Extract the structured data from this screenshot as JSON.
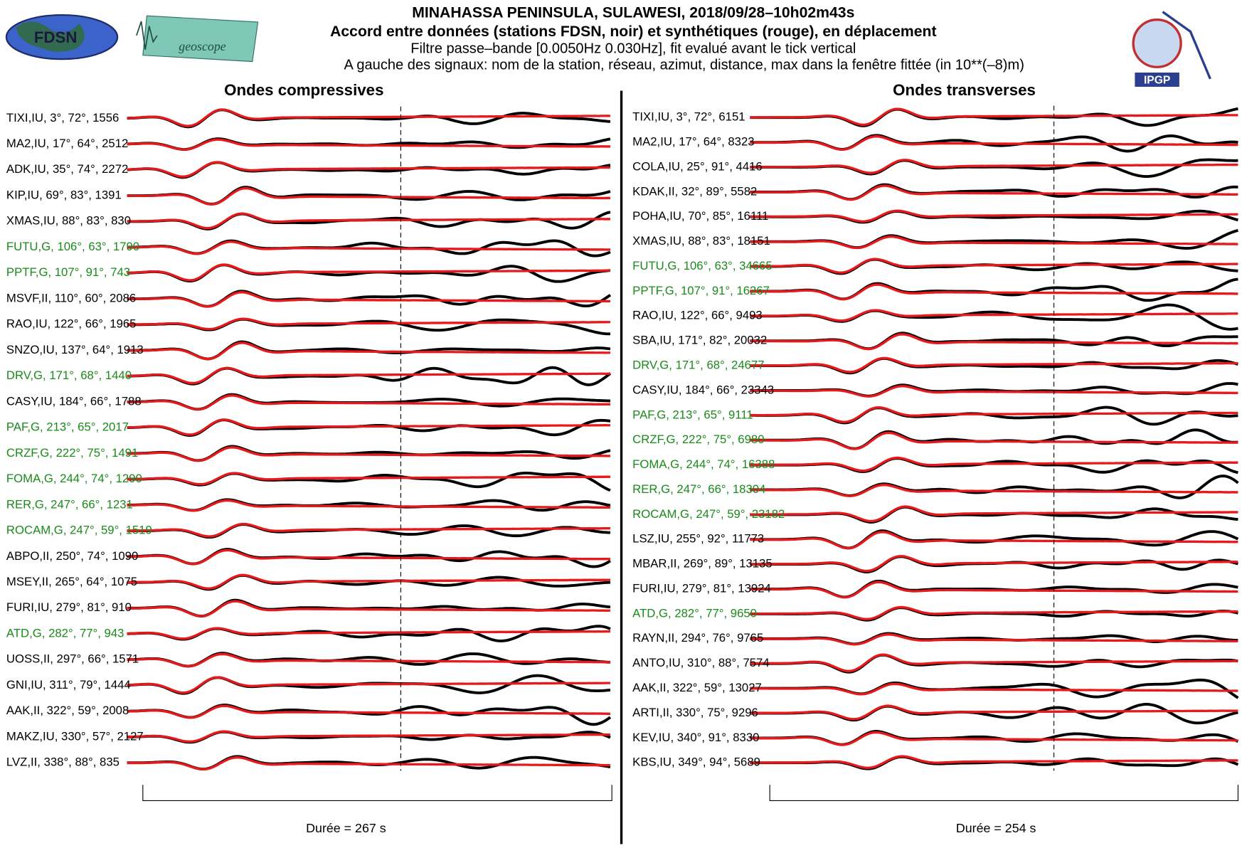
{
  "header": {
    "title": "MINAHASSA PENINSULA, SULAWESI, 2018/09/28–10h02m43s",
    "subtitle": "Accord entre données (stations FDSN, noir) et synthétiques (rouge), en déplacement",
    "filter": "Filtre passe–bande [0.0050Hz 0.030Hz], fit evalué avant le tick vertical",
    "legend": "A gauche des signaux: nom de la station, réseau, azimut, distance, max dans la fenêtre fittée (in 10**(–8)m)"
  },
  "logos": {
    "fdsn": "FDSN",
    "geoscope": "geoscope",
    "ipgp": "IPGP"
  },
  "panels": [
    {
      "title": "Ondes compressives",
      "duration": "Durée = 267 s",
      "rows": [
        {
          "label": "TIXI,IU, 3°, 72°, 1556",
          "color": "#000"
        },
        {
          "label": "MA2,IU, 17°, 64°, 2512",
          "color": "#000"
        },
        {
          "label": "ADK,IU, 35°, 74°, 2272",
          "color": "#000"
        },
        {
          "label": "KIP,IU, 69°, 83°, 1391",
          "color": "#000"
        },
        {
          "label": "XMAS,IU, 88°, 83°, 830",
          "color": "#000"
        },
        {
          "label": "FUTU,G, 106°, 63°, 1790",
          "color": "#1a8a1a"
        },
        {
          "label": "PPTF,G, 107°, 91°, 743",
          "color": "#1a8a1a"
        },
        {
          "label": "MSVF,II, 110°, 60°, 2086",
          "color": "#000"
        },
        {
          "label": "RAO,IU, 122°, 66°, 1965",
          "color": "#000"
        },
        {
          "label": "SNZO,IU, 137°, 64°, 1913",
          "color": "#000"
        },
        {
          "label": "DRV,G, 171°, 68°, 1440",
          "color": "#1a8a1a"
        },
        {
          "label": "CASY,IU, 184°, 66°, 1788",
          "color": "#000"
        },
        {
          "label": "PAF,G, 213°, 65°, 2017",
          "color": "#1a8a1a"
        },
        {
          "label": "CRZF,G, 222°, 75°, 1491",
          "color": "#1a8a1a"
        },
        {
          "label": "FOMA,G, 244°, 74°, 1290",
          "color": "#1a8a1a"
        },
        {
          "label": "RER,G, 247°, 66°, 1231",
          "color": "#1a8a1a"
        },
        {
          "label": "ROCAM,G, 247°, 59°, 1519",
          "color": "#1a8a1a"
        },
        {
          "label": "ABPO,II, 250°, 74°, 1090",
          "color": "#000"
        },
        {
          "label": "MSEY,II, 265°, 64°, 1075",
          "color": "#000"
        },
        {
          "label": "FURI,IU, 279°, 81°, 910",
          "color": "#000"
        },
        {
          "label": "ATD,G, 282°, 77°, 943",
          "color": "#1a8a1a"
        },
        {
          "label": "UOSS,II, 297°, 66°, 1571",
          "color": "#000"
        },
        {
          "label": "GNI,IU, 311°, 79°, 1444",
          "color": "#000"
        },
        {
          "label": "AAK,II, 322°, 59°, 2008",
          "color": "#000"
        },
        {
          "label": "MAKZ,IU, 330°, 57°, 2127",
          "color": "#000"
        },
        {
          "label": "LVZ,II, 338°, 88°, 835",
          "color": "#000"
        }
      ]
    },
    {
      "title": "Ondes transverses",
      "duration": "Durée = 254 s",
      "rows": [
        {
          "label": "TIXI,IU, 3°, 72°, 6151",
          "color": "#000"
        },
        {
          "label": "MA2,IU, 17°, 64°, 8323",
          "color": "#000"
        },
        {
          "label": "COLA,IU, 25°, 91°, 4416",
          "color": "#000"
        },
        {
          "label": "KDAK,II, 32°, 89°, 5582",
          "color": "#000"
        },
        {
          "label": "POHA,IU, 70°, 85°, 16111",
          "color": "#000"
        },
        {
          "label": "XMAS,IU, 88°, 83°, 18151",
          "color": "#000"
        },
        {
          "label": "FUTU,G, 106°, 63°, 34665",
          "color": "#1a8a1a"
        },
        {
          "label": "PPTF,G, 107°, 91°, 16267",
          "color": "#1a8a1a"
        },
        {
          "label": "RAO,IU, 122°, 66°, 9493",
          "color": "#000"
        },
        {
          "label": "SBA,IU, 171°, 82°, 20032",
          "color": "#000"
        },
        {
          "label": "DRV,G, 171°, 68°, 24677",
          "color": "#1a8a1a"
        },
        {
          "label": "CASY,IU, 184°, 66°, 23343",
          "color": "#000"
        },
        {
          "label": "PAF,G, 213°, 65°, 9111",
          "color": "#1a8a1a"
        },
        {
          "label": "CRZF,G, 222°, 75°, 6980",
          "color": "#1a8a1a"
        },
        {
          "label": "FOMA,G, 244°, 74°, 16388",
          "color": "#1a8a1a"
        },
        {
          "label": "RER,G, 247°, 66°, 18304",
          "color": "#1a8a1a"
        },
        {
          "label": "ROCAM,G, 247°, 59°, 23182",
          "color": "#1a8a1a"
        },
        {
          "label": "LSZ,IU, 255°, 92°, 11773",
          "color": "#000"
        },
        {
          "label": "MBAR,II, 269°, 89°, 13135",
          "color": "#000"
        },
        {
          "label": "FURI,IU, 279°, 81°, 13924",
          "color": "#000"
        },
        {
          "label": "ATD,G, 282°, 77°, 9650",
          "color": "#1a8a1a"
        },
        {
          "label": "RAYN,II, 294°, 76°, 9765",
          "color": "#000"
        },
        {
          "label": "ANTO,IU, 310°, 88°, 7574",
          "color": "#000"
        },
        {
          "label": "AAK,II, 322°, 59°, 13027",
          "color": "#000"
        },
        {
          "label": "ARTI,II, 330°, 75°, 9296",
          "color": "#000"
        },
        {
          "label": "KEV,IU, 340°, 91°, 8330",
          "color": "#000"
        },
        {
          "label": "KBS,IU, 349°, 94°, 5689",
          "color": "#000"
        }
      ]
    }
  ]
}
